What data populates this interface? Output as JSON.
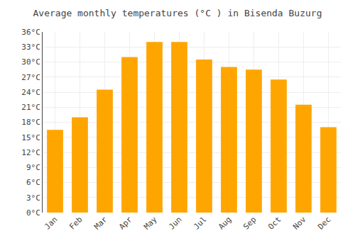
{
  "chart_data": {
    "type": "bar",
    "title": "Average monthly temperatures (°C ) in Bisenda Buzurg",
    "categories": [
      "Jan",
      "Feb",
      "Mar",
      "Apr",
      "May",
      "Jun",
      "Jul",
      "Aug",
      "Sep",
      "Oct",
      "Nov",
      "Dec"
    ],
    "values": [
      16.5,
      19.0,
      24.5,
      31.0,
      34.0,
      34.0,
      30.5,
      29.0,
      28.5,
      26.5,
      21.5,
      17.0
    ],
    "color": "#FFA500",
    "ylim": [
      0,
      36
    ],
    "yticks": [
      {
        "value": 0,
        "label": "0°C"
      },
      {
        "value": 3,
        "label": "3°C"
      },
      {
        "value": 6,
        "label": "6°C"
      },
      {
        "value": 9,
        "label": "9°C"
      },
      {
        "value": 12,
        "label": "12°C"
      },
      {
        "value": 15,
        "label": "15°C"
      },
      {
        "value": 18,
        "label": "18°C"
      },
      {
        "value": 21,
        "label": "21°C"
      },
      {
        "value": 24,
        "label": "24°C"
      },
      {
        "value": 27,
        "label": "27°C"
      },
      {
        "value": 30,
        "label": "30°C"
      },
      {
        "value": 33,
        "label": "33°C"
      },
      {
        "value": 36,
        "label": "36°C"
      }
    ],
    "grid": true
  }
}
